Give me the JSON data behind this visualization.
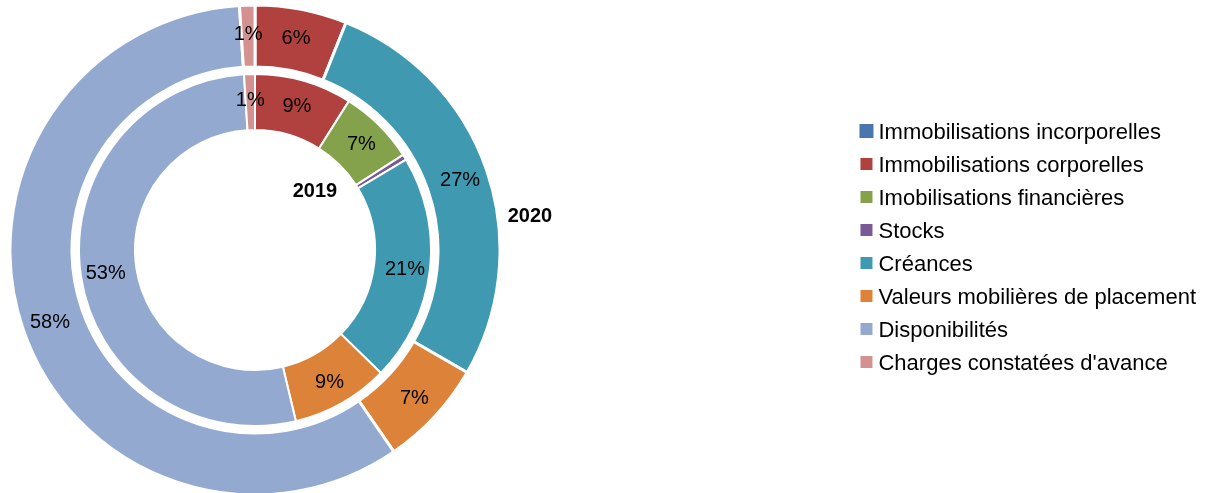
{
  "chart_data": {
    "type": "donut",
    "categories": [
      "Immobilisations incorporelles",
      "Immobilisations corporelles",
      "Imobilisations financières",
      "Stocks",
      "Créances",
      "Valeurs mobilières de placement",
      "Disponibilités",
      "Charges constatées d'avance"
    ],
    "colors": [
      "#4a76ad",
      "#b0413e",
      "#84a24b",
      "#775a96",
      "#3f99b0",
      "#dc8239",
      "#94a9d0",
      "#d39291"
    ],
    "series": [
      {
        "name": "2019",
        "values": [
          0,
          9,
          7,
          0.5,
          21,
          9,
          53,
          1
        ],
        "value_labels": [
          null,
          "9%",
          "7%",
          null,
          "21%",
          "9%",
          "53%",
          "1%"
        ]
      },
      {
        "name": "2020",
        "values": [
          0,
          6,
          0,
          0,
          27,
          7,
          58,
          1
        ],
        "value_labels": [
          null,
          "6%",
          null,
          null,
          "27%",
          "7%",
          "58%",
          "1%"
        ]
      }
    ],
    "legend": "right"
  }
}
